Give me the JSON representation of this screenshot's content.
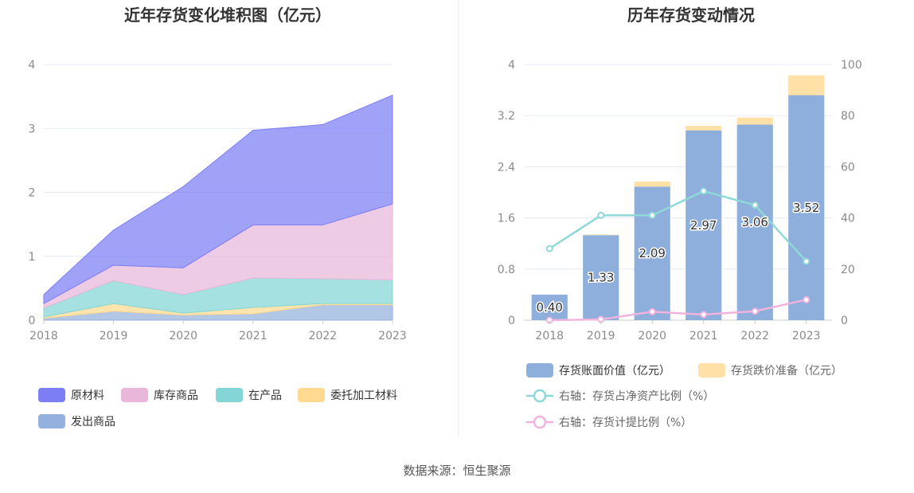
{
  "source_label": "数据来源：恒生聚源",
  "colors": {
    "raw_material": "#7b7ef5",
    "inventory_goods": "#e8b7d9",
    "wip": "#84d6d6",
    "outsourced": "#ffd98f",
    "shipped": "#94b0dd",
    "book_value_bar": "#8eaedc",
    "impairment_bar": "#ffe0a6",
    "ratio_net_assets": "#8ed8d8",
    "provision_ratio": "#f0b3dd"
  },
  "chart_data": [
    {
      "type": "area",
      "title": "近年存货变化堆积图（亿元）",
      "x": [
        "2018",
        "2019",
        "2020",
        "2021",
        "2022",
        "2023"
      ],
      "ylim": [
        0,
        4
      ],
      "yticks": [
        "0",
        "1",
        "2",
        "3",
        "4"
      ],
      "stacked": true,
      "series": [
        {
          "name": "发出商品",
          "values": [
            0.03,
            0.14,
            0.08,
            0.1,
            0.24,
            0.24
          ]
        },
        {
          "name": "委托加工材料",
          "values": [
            0.02,
            0.12,
            0.03,
            0.1,
            0.02,
            0.02
          ]
        },
        {
          "name": "在产品",
          "values": [
            0.14,
            0.36,
            0.29,
            0.46,
            0.39,
            0.37
          ]
        },
        {
          "name": "库存商品",
          "values": [
            0.07,
            0.24,
            0.42,
            0.83,
            0.84,
            1.19
          ]
        },
        {
          "name": "原材料",
          "values": [
            0.14,
            0.55,
            1.27,
            1.48,
            1.57,
            1.7
          ]
        }
      ],
      "legend": [
        "原材料",
        "库存商品",
        "在产品",
        "委托加工材料",
        "发出商品"
      ],
      "legend_position": "bottom"
    },
    {
      "type": "bar",
      "title": "历年存货变动情况",
      "categories": [
        "2018",
        "2019",
        "2020",
        "2021",
        "2022",
        "2023"
      ],
      "ylim": [
        0,
        4
      ],
      "yticks": [
        "0",
        "0.8",
        "1.6",
        "2.4",
        "3.2",
        "4"
      ],
      "y2lim": [
        0,
        100
      ],
      "y2ticks": [
        "0",
        "20",
        "40",
        "60",
        "80",
        "100"
      ],
      "stacked": true,
      "series": [
        {
          "name": "存货账面价值（亿元）",
          "values": [
            0.4,
            1.33,
            2.09,
            2.97,
            3.06,
            3.52
          ],
          "labels": [
            "0.40",
            "1.33",
            "2.09",
            "2.97",
            "3.06",
            "3.52"
          ]
        },
        {
          "name": "存货跌价准备（亿元）",
          "values": [
            0,
            0.01,
            0.08,
            0.07,
            0.11,
            0.31
          ]
        }
      ],
      "line_series": [
        {
          "name": "右轴：存货占净资产比例（%）",
          "axis": "right",
          "values": [
            28,
            41,
            41,
            50.5,
            45,
            23
          ]
        },
        {
          "name": "右轴：存货计提比例（%）",
          "axis": "right",
          "values": [
            0,
            0.3,
            3.3,
            2.2,
            3.5,
            8
          ]
        }
      ],
      "legend_position": "bottom"
    }
  ]
}
